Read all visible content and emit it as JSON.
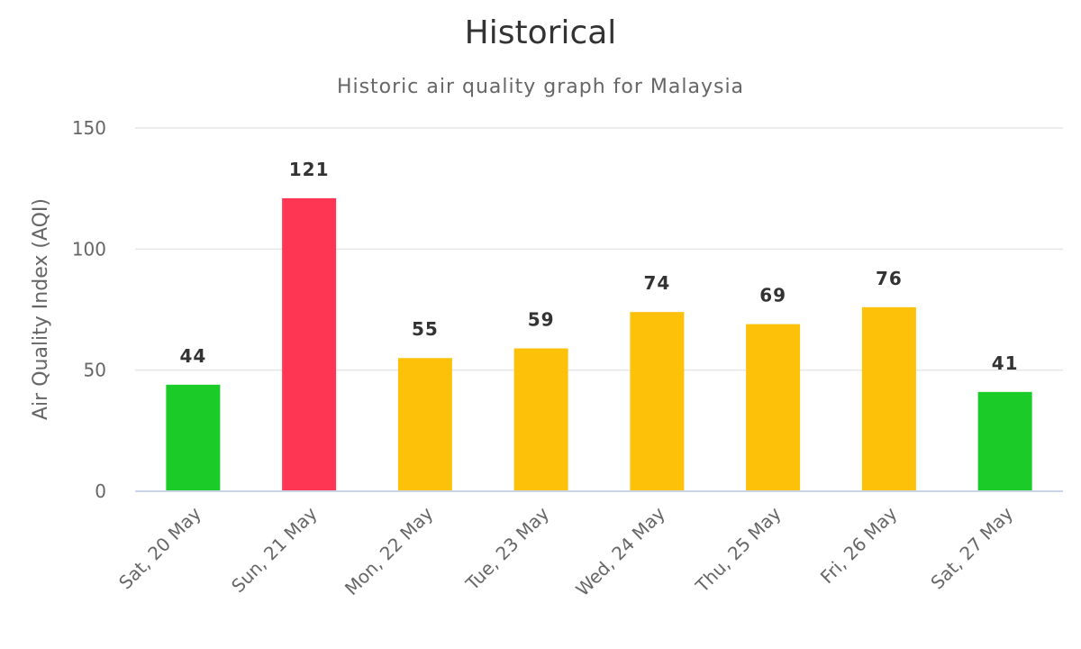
{
  "chart_data": {
    "type": "bar",
    "title": "Historical",
    "subtitle": "Historic air quality graph for Malaysia",
    "xlabel": "",
    "ylabel": "Air Quality Index (AQI)",
    "ylim": [
      0,
      150
    ],
    "yticks": [
      "0",
      "50",
      "100",
      "150"
    ],
    "grid": true,
    "categories": [
      "Sat, 20 May",
      "Sun, 21 May",
      "Mon, 22 May",
      "Tue, 23 May",
      "Wed, 24 May",
      "Thu, 25 May",
      "Fri, 26 May",
      "Sat, 27 May"
    ],
    "values": [
      44,
      121,
      55,
      59,
      74,
      69,
      76,
      41
    ],
    "colors": [
      "#1bcc28",
      "#ff3653",
      "#fdc109",
      "#fdc109",
      "#fdc109",
      "#fdc109",
      "#fdc109",
      "#1bcc28"
    ]
  }
}
